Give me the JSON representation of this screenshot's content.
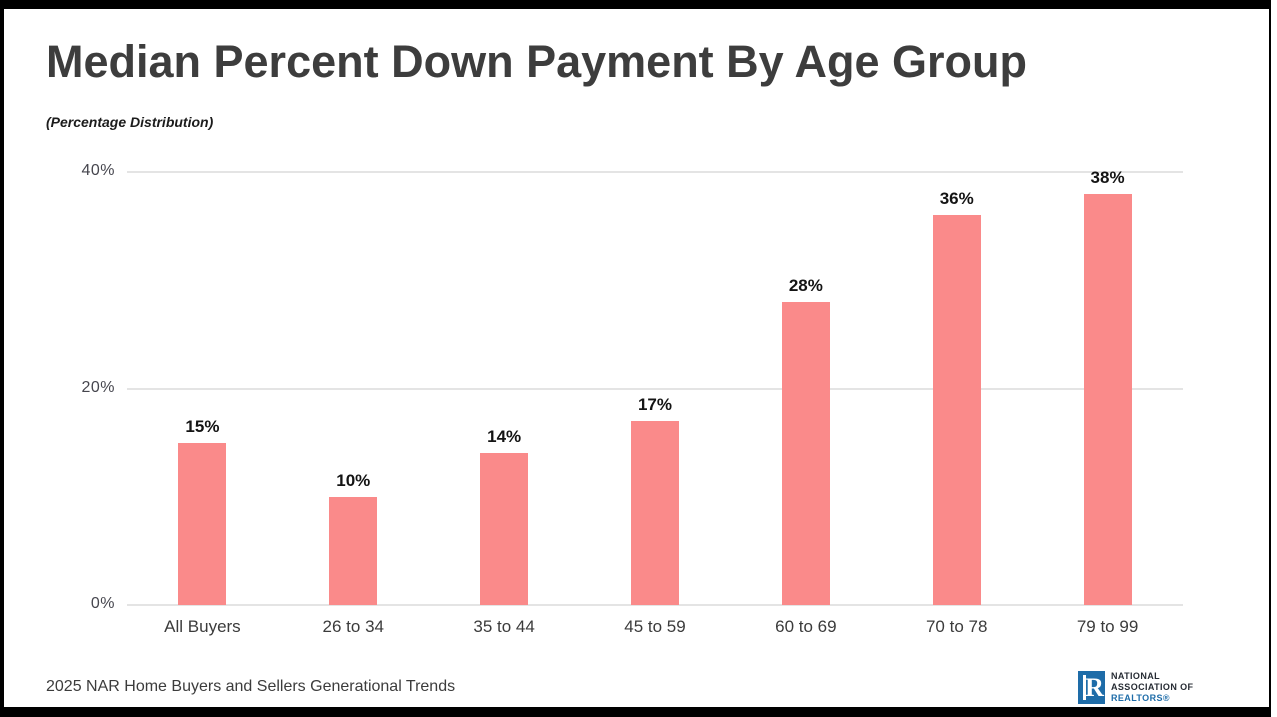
{
  "chart_data": {
    "type": "bar",
    "title": "Median Percent Down Payment By Age Group",
    "subtitle": "(Percentage Distribution)",
    "categories": [
      "All Buyers",
      "26 to 34",
      "35 to 44",
      "45 to 59",
      "60 to 69",
      "70 to 78",
      "79 to 99"
    ],
    "values": [
      15,
      10,
      14,
      17,
      28,
      36,
      38
    ],
    "value_labels": [
      "15%",
      "10%",
      "14%",
      "17%",
      "28%",
      "36%",
      "38%"
    ],
    "y_ticks": [
      {
        "label": "0%",
        "value": 0
      },
      {
        "label": "20%",
        "value": 20
      },
      {
        "label": "40%",
        "value": 40
      }
    ],
    "ylim": [
      0,
      40
    ],
    "grid": true,
    "legend": "none",
    "bar_color": "#FA8A8A"
  },
  "footer": {
    "source": "2025 NAR Home Buyers and Sellers Generational Trends",
    "logo": {
      "letter": "R",
      "line1": "NATIONAL",
      "line2": "ASSOCIATION OF",
      "line3": "REALTORS®",
      "square_color": "#1E6CA8",
      "text_color": "#262B33",
      "realtors_color": "#1E6CA8"
    }
  }
}
